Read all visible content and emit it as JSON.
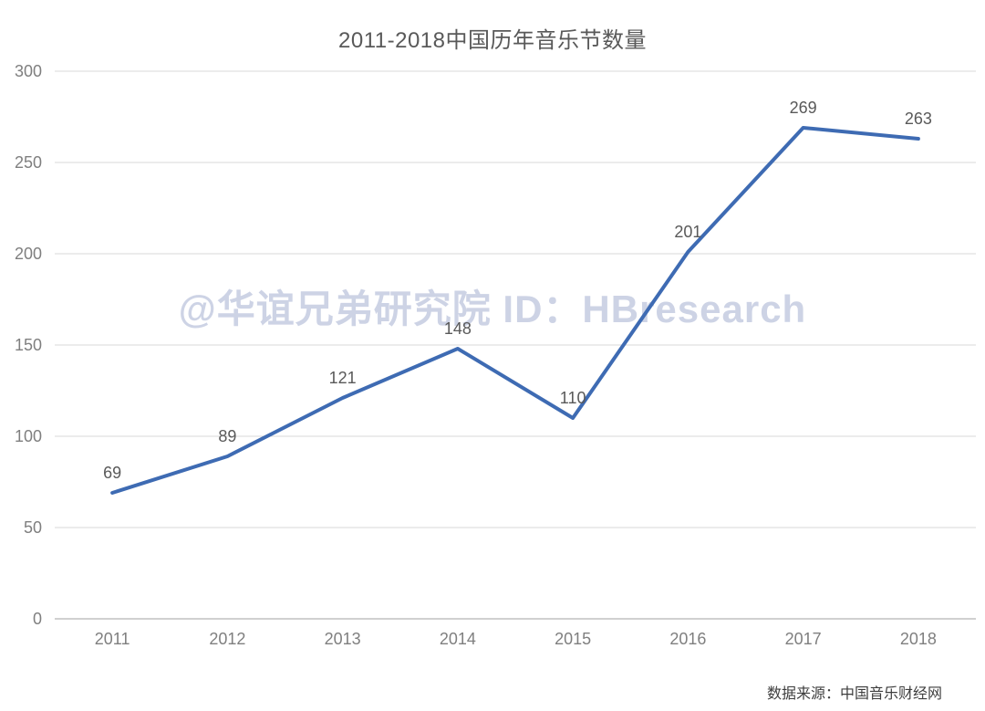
{
  "header": {
    "title": "2011-2018中国历年音乐节数量"
  },
  "watermark": {
    "text": "@华谊兄弟研究院 ID：HBresearch",
    "color": "#cdd3e5"
  },
  "footer": {
    "source_label": "数据来源：中国音乐财经网"
  },
  "chart_data": {
    "type": "line",
    "title": "2011-2018中国历年音乐节数量",
    "categories": [
      "2011",
      "2012",
      "2013",
      "2014",
      "2015",
      "2016",
      "2017",
      "2018"
    ],
    "values": [
      69,
      89,
      121,
      148,
      110,
      201,
      269,
      263
    ],
    "xlabel": "",
    "ylabel": "",
    "ylim": [
      0,
      300
    ],
    "yticks": [
      0,
      50,
      100,
      150,
      200,
      250,
      300
    ],
    "grid": true,
    "legend": "none",
    "data_labels": true,
    "line_color": "#3e6bb3",
    "line_width": 4,
    "gridline_color": "#d9d9d9",
    "baseline_color": "#c0c0c0",
    "axis_text_color": "#7f7f7f",
    "data_label_color": "#595959"
  }
}
